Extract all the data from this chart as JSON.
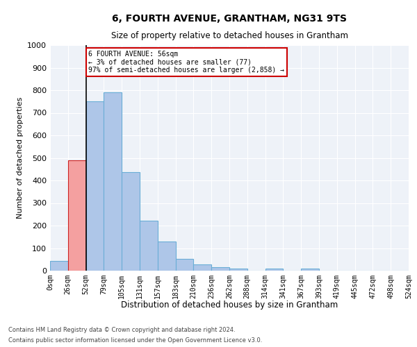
{
  "title": "6, FOURTH AVENUE, GRANTHAM, NG31 9TS",
  "subtitle": "Size of property relative to detached houses in Grantham",
  "xlabel": "Distribution of detached houses by size in Grantham",
  "ylabel": "Number of detached properties",
  "bar_color_normal": "#aec6e8",
  "bar_color_highlight": "#f4a0a0",
  "bar_edge_color_normal": "#6aaed6",
  "bar_edge_color_highlight": "#cc2222",
  "bin_labels": [
    "0sqm",
    "26sqm",
    "52sqm",
    "79sqm",
    "105sqm",
    "131sqm",
    "157sqm",
    "183sqm",
    "210sqm",
    "236sqm",
    "262sqm",
    "288sqm",
    "314sqm",
    "341sqm",
    "367sqm",
    "393sqm",
    "419sqm",
    "445sqm",
    "472sqm",
    "498sqm",
    "524sqm"
  ],
  "bar_values": [
    42,
    488,
    750,
    790,
    437,
    222,
    128,
    52,
    27,
    16,
    10,
    0,
    8,
    0,
    10,
    0,
    0,
    0,
    0,
    0
  ],
  "highlight_bars": [
    1
  ],
  "ylim": [
    0,
    1000
  ],
  "yticks": [
    0,
    100,
    200,
    300,
    400,
    500,
    600,
    700,
    800,
    900,
    1000
  ],
  "vline_x": 2,
  "annotation_text": "6 FOURTH AVENUE: 56sqm\n← 3% of detached houses are smaller (77)\n97% of semi-detached houses are larger (2,858) →",
  "annotation_box_color": "#ffffff",
  "annotation_box_edgecolor": "#cc0000",
  "footer_line1": "Contains HM Land Registry data © Crown copyright and database right 2024.",
  "footer_line2": "Contains public sector information licensed under the Open Government Licence v3.0.",
  "background_color": "#eef2f8",
  "grid_color": "#ffffff",
  "fig_width": 6.0,
  "fig_height": 5.0,
  "dpi": 100
}
